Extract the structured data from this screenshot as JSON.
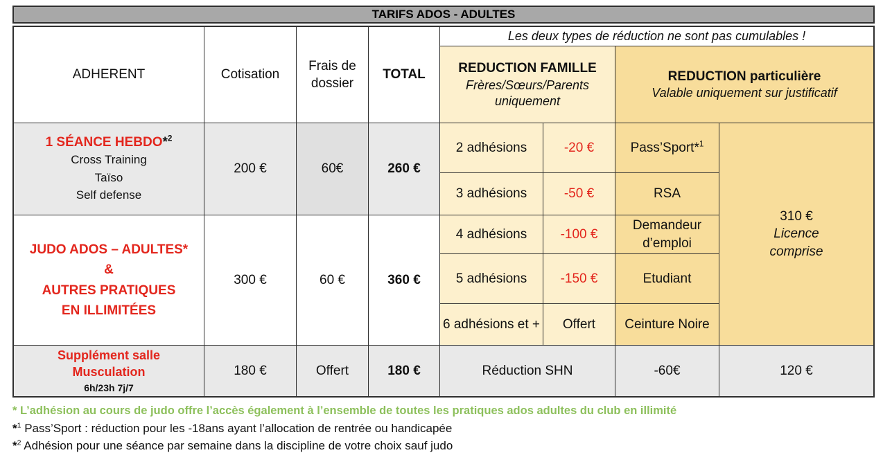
{
  "title": "TARIFS ADOS - ADULTES",
  "colors": {
    "title_bar_bg": "#a8a8a8",
    "gray_cell_bg": "#e9e9e9",
    "gray_cell_dark_bg": "#e0e0e0",
    "light_yellow_bg": "#fdf0cd",
    "gold_bg": "#f8dd9b",
    "red_text": "#e3261d",
    "green_text": "#8dc05c",
    "grid_line": "#2f2f2f"
  },
  "header": {
    "adherent": "ADHERENT",
    "cotisation": "Cotisation",
    "frais": "Frais de dossier",
    "total": "TOTAL",
    "cumul_note": "Les deux types de réduction ne sont pas cumulables !",
    "famille_title": "REDUCTION FAMILLE",
    "famille_subtitle": "Frères/Sœurs/Parents uniquement",
    "particuliere_title": "REDUCTION particulière",
    "particuliere_subtitle": "Valable uniquement sur justificatif"
  },
  "rows": {
    "seance": {
      "label": "1 SÉANCE HEBDO",
      "label_star": "*",
      "label_sup": "2",
      "sublines": [
        "Cross Training",
        "Taïso",
        "Self defense"
      ],
      "cotisation": "200 €",
      "frais": "60€",
      "total": "260 €"
    },
    "judo": {
      "label": "JUDO ADOS – ADULTES",
      "label_star": "*",
      "lines": [
        "&",
        "AUTRES PRATIQUES",
        "EN ILLIMITÉES"
      ],
      "cotisation": "300 €",
      "frais": "60 €",
      "total": "360 €"
    },
    "musculation": {
      "label_line1": "Supplément salle",
      "label_line2": "Musculation",
      "hours": "6h/23h 7j/7",
      "cotisation": "180 €",
      "frais": "Offert",
      "total": "180 €",
      "shn_label": "Réduction SHN",
      "shn_amount": "-60€",
      "shn_total": "120 €"
    }
  },
  "famille_rows": [
    {
      "label": "2 adhésions",
      "amount": "-20 €"
    },
    {
      "label": "3 adhésions",
      "amount": "-50 €"
    },
    {
      "label": "4 adhésions",
      "amount": "-100 €"
    },
    {
      "label": "5 adhésions",
      "amount": "-150 €"
    },
    {
      "label": "6 adhésions et +",
      "amount": "Offert"
    }
  ],
  "particuliere_rows": [
    {
      "label": "Pass’Sport",
      "star": "*",
      "sup": "1"
    },
    {
      "label": "RSA"
    },
    {
      "label": "Demandeur d’emploi"
    },
    {
      "label": "Etudiant"
    },
    {
      "label": "Ceinture Noire"
    }
  ],
  "licence_cell": {
    "price": "310 €",
    "line2": "Licence",
    "line3": "comprise"
  },
  "footnotes": {
    "note_star": "* L’adhésion au cours de judo offre l’accès également à l’ensemble de toutes les pratiques ados adultes du club en illimité",
    "note1_star": "*",
    "note1_sup": "1",
    "note1_text": " Pass’Sport : réduction pour les -18ans ayant l’allocation de rentrée ou handicapée",
    "note2_star": "*",
    "note2_sup": "2",
    "note2_text": " Adhésion pour une séance par semaine dans la discipline de votre choix sauf judo"
  }
}
